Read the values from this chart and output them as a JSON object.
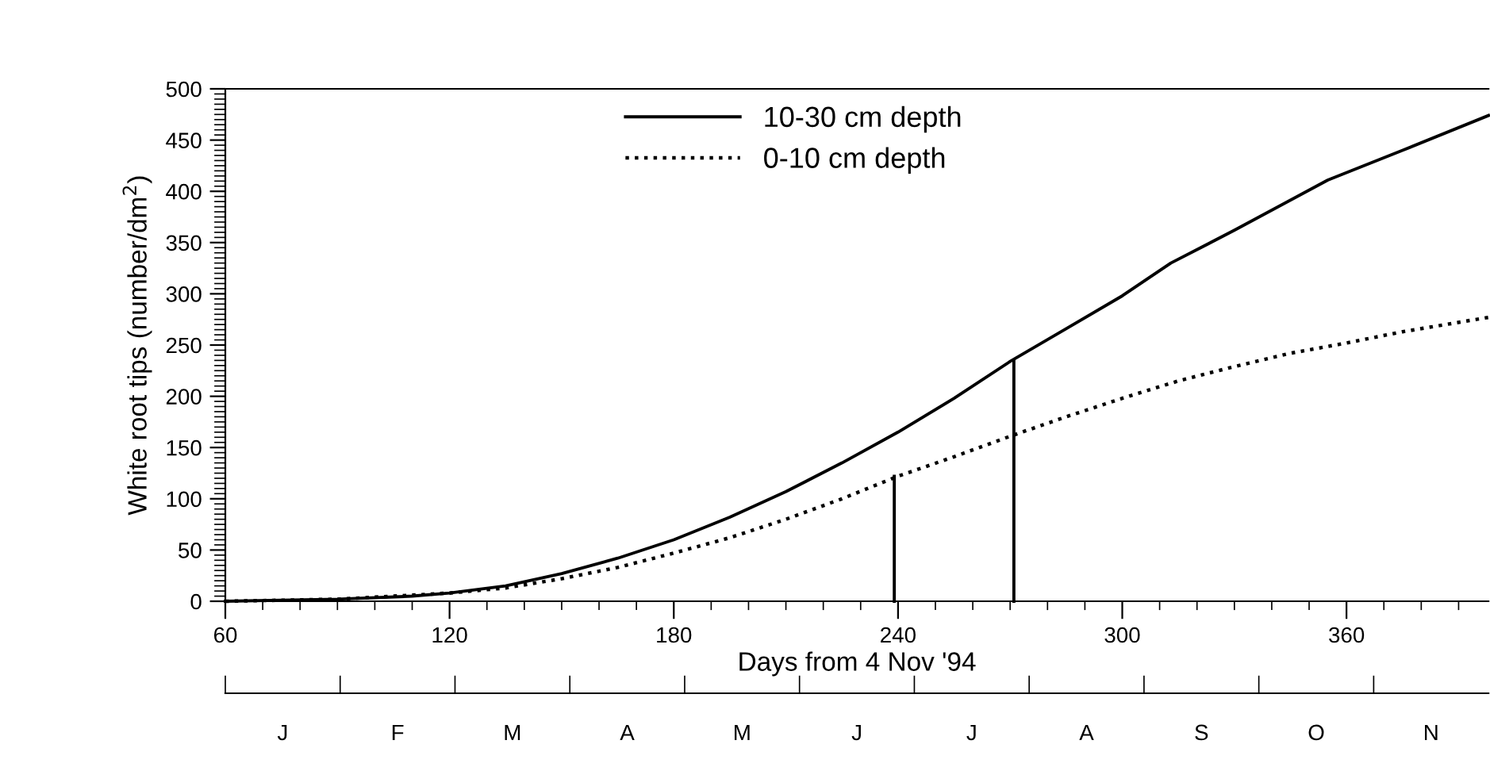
{
  "chart_data": [
    {
      "type": "line",
      "xlabel": "Days from 4 Nov '94",
      "ylabel": "White root tips (number/dm$^{2}$)",
      "xlim": [
        60,
        398
      ],
      "xticks": [
        60,
        120,
        180,
        240,
        300,
        360
      ],
      "ylim": [
        0,
        500
      ],
      "yticks": [
        0,
        50,
        100,
        150,
        200,
        250,
        300,
        350,
        400,
        450,
        500
      ],
      "legend": "top",
      "grid": false,
      "marker": "none",
      "series": [
        {
          "name": "10-30 cm depth",
          "color": "#000000",
          "line_style": "solid",
          "x": [
            60,
            90,
            110,
            120,
            135,
            150,
            165,
            180,
            195,
            210,
            225,
            240,
            255,
            270,
            285,
            300,
            313,
            330,
            355,
            375,
            398
          ],
          "values": [
            0,
            2,
            5,
            8,
            15,
            27,
            42,
            60,
            82,
            107,
            135,
            165,
            198,
            234,
            266,
            298,
            330,
            362,
            411,
            440,
            474
          ]
        },
        {
          "name": "0-10 cm depth",
          "color": "#000000",
          "line_style": "dotted",
          "x": [
            60,
            90,
            120,
            135,
            150,
            165,
            180,
            195,
            210,
            225,
            240,
            255,
            270,
            285,
            300,
            315,
            330,
            345,
            360,
            375,
            398
          ],
          "values": [
            0,
            2,
            8,
            13,
            22,
            33,
            47,
            62,
            80,
            100,
            122,
            141,
            161,
            180,
            198,
            215,
            229,
            242,
            252,
            263,
            277
          ]
        },
        {
          "color": "#000000",
          "line_style": "solid",
          "x": [
            239,
            239
          ],
          "values": [
            0,
            122
          ]
        },
        {
          "color": "#000000",
          "line_style": "solid",
          "x": [
            271,
            271
          ],
          "values": [
            0,
            234
          ]
        }
      ]
    },
    {
      "type": "other",
      "categories": [
        "J",
        "F",
        "M",
        "A",
        "M",
        "J",
        "J",
        "A",
        "S",
        "O",
        "N"
      ]
    }
  ]
}
